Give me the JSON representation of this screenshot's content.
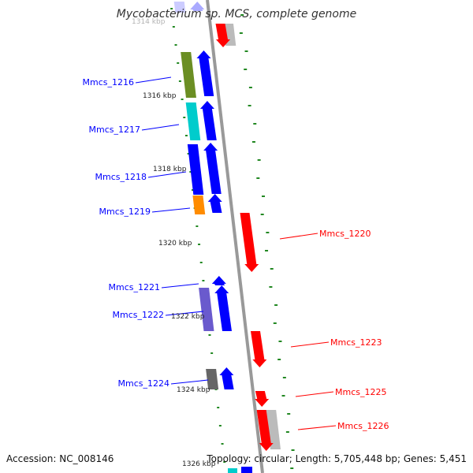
{
  "title": "Mycobacterium sp. MCS, complete genome",
  "accession": "Accession: NC_008146",
  "summary": "Topology: circular; Length: 5,705,448 bp; Genes: 5,451",
  "colors": {
    "forward": "#0000ff",
    "reverse": "#ff0000",
    "backbone": "#888888",
    "tick": "#228822"
  },
  "scale_labels": [
    "1314 kbp",
    "1316 kbp",
    "1318 kbp",
    "1320 kbp",
    "1322 kbp",
    "1324 kbp",
    "1326 kbp"
  ],
  "forward_genes": [
    {
      "name": "Mmcs_1216",
      "color": "#0000ff"
    },
    {
      "name": "Mmcs_1217",
      "color": "#0000ff"
    },
    {
      "name": "Mmcs_1218",
      "color": "#0000ff"
    },
    {
      "name": "Mmcs_1219",
      "color": "#0000ff"
    },
    {
      "name": "Mmcs_1221",
      "color": "#0000ff"
    },
    {
      "name": "Mmcs_1222",
      "color": "#0000ff"
    },
    {
      "name": "Mmcs_1224",
      "color": "#0000ff"
    }
  ],
  "reverse_genes": [
    {
      "name": "Mmcs_1220",
      "color": "#ff0000"
    },
    {
      "name": "Mmcs_1223",
      "color": "#ff0000"
    },
    {
      "name": "Mmcs_1225",
      "color": "#ff0000"
    },
    {
      "name": "Mmcs_1226",
      "color": "#ff0000"
    }
  ]
}
